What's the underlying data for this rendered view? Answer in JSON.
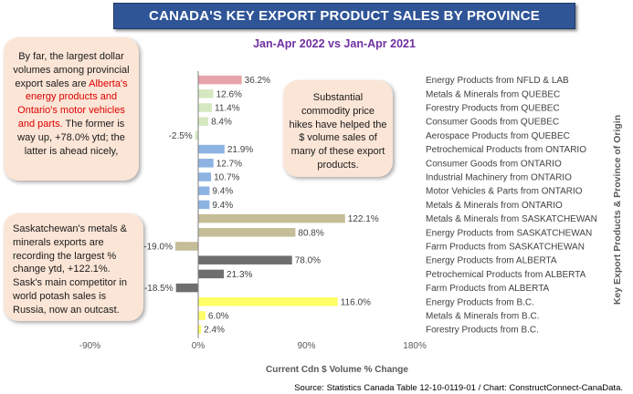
{
  "header": {
    "title": "CANADA'S KEY EXPORT PRODUCT SALES BY PROVINCE",
    "subtitle": "Jan-Apr 2022 vs Jan-Apr 2021"
  },
  "callouts": {
    "top_left": {
      "part1": "By far, the largest dollar volumes among provincial export sales are ",
      "highlight": "Alberta's energy products and Ontario's motor vehicles and parts.",
      "part2": " The former is way up, +78.0% ytd; the latter is ahead nicely,"
    },
    "middle": "Substantial commodity price hikes have helped the $ volume sales of many of these export products.",
    "bottom_left": "Saskatchewan's metals & minerals exports are recording the largest % change ytd, +122.1%. Sask's main competitor in world potash sales is Russia, now an outcast."
  },
  "axes": {
    "x_title": "Current Cdn $ Volume % Change",
    "y_title": "Key Export Products & Province of Origin"
  },
  "source": "Source: Statistics Canada Table 12-10-0119-01 / Chart: ConstructConnect-CanaData.",
  "chart_data": {
    "type": "bar",
    "orientation": "horizontal",
    "xlim": [
      -90,
      180
    ],
    "x_ticks": [
      "-90%",
      "0%",
      "90%",
      "180%"
    ],
    "x_tick_values": [
      -90,
      0,
      90,
      180
    ],
    "gridlines": false,
    "categories": [
      "Energy Products from NFLD & LAB",
      "Metals & Minerals from QUEBEC",
      "Forestry Products from QUEBEC",
      "Consumer Goods from QUEBEC",
      "Aerospace Products from QUEBEC",
      "Petrochemical Products from ONTARIO",
      "Consumer Goods from ONTARIO",
      "Industrial Machinery from ONTARIO",
      "Motor Vehicles & Parts from ONTARIO",
      "Metals & Minerals from ONTARIO",
      "Metals & Minerals from SASKATCHEWAN",
      "Energy Products from SASKATCHEWAN",
      "Farm Products from SASKATCHEWAN",
      "Energy Products from ALBERTA",
      "Petrochemical Products from ALBERTA",
      "Farm Products from ALBERTA",
      "Energy Products from B.C.",
      "Metals & Minerals from B.C.",
      "Forestry Products from B.C."
    ],
    "values": [
      36.2,
      12.6,
      11.4,
      8.4,
      -2.5,
      21.9,
      12.7,
      10.7,
      9.4,
      9.4,
      122.1,
      80.8,
      -19.0,
      78.0,
      21.3,
      -18.5,
      116.0,
      6.0,
      2.4
    ],
    "value_labels": [
      "36.2%",
      "12.6%",
      "11.4%",
      "8.4%",
      "-2.5%",
      "21.9%",
      "12.7%",
      "10.7%",
      "9.4%",
      "9.4%",
      "122.1%",
      "80.8%",
      "-19.0%",
      "78.0%",
      "21.3%",
      "-18.5%",
      "116.0%",
      "6.0%",
      "2.4%"
    ],
    "colors": [
      "#e6a3a8",
      "#d5e8c0",
      "#d5e8c0",
      "#d5e8c0",
      "#d5e8c0",
      "#8db3e2",
      "#8db3e2",
      "#8db3e2",
      "#8db3e2",
      "#8db3e2",
      "#c4bd97",
      "#c4bd97",
      "#c4bd97",
      "#6e6e6e",
      "#6e6e6e",
      "#6e6e6e",
      "#ffff66",
      "#ffff66",
      "#ffff66"
    ]
  }
}
